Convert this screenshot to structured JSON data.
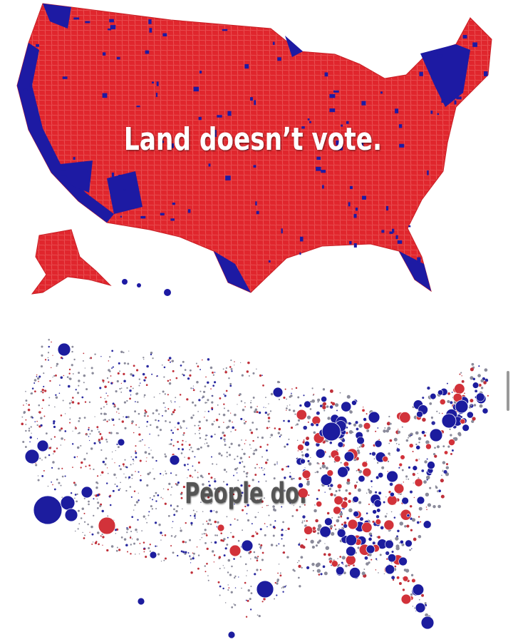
{
  "top_map": {
    "caption": "Land doesn’t vote."
  },
  "bottom_map": {
    "caption": "People do."
  }
}
